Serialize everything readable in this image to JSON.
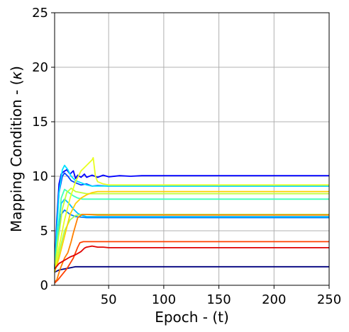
{
  "chart_data": {
    "type": "line",
    "xlabel": "Epoch - (t)",
    "ylabel_text": "Mapping Condition - (",
    "ylabel_symbol": "κ",
    "ylabel_close": ")",
    "xlim": [
      1,
      250
    ],
    "ylim": [
      0,
      25
    ],
    "xticks": [
      50,
      100,
      150,
      200,
      250
    ],
    "yticks": [
      0,
      5,
      10,
      15,
      20,
      25
    ],
    "grid": true,
    "series": [
      {
        "color": "#00007f",
        "points": [
          [
            1,
            1.2
          ],
          [
            5,
            1.4
          ],
          [
            10,
            1.5
          ],
          [
            15,
            1.6
          ],
          [
            20,
            1.7
          ],
          [
            30,
            1.7
          ],
          [
            250,
            1.7
          ]
        ]
      },
      {
        "color": "#0000ff",
        "points": [
          [
            1,
            1.5
          ],
          [
            3,
            6.0
          ],
          [
            5,
            9.3
          ],
          [
            7,
            10.2
          ],
          [
            9,
            10.4
          ],
          [
            12,
            10.6
          ],
          [
            15,
            10.2
          ],
          [
            18,
            10.5
          ],
          [
            20,
            9.8
          ],
          [
            22,
            10.1
          ],
          [
            25,
            9.9
          ],
          [
            28,
            10.2
          ],
          [
            30,
            9.9
          ],
          [
            35,
            10.1
          ],
          [
            40,
            9.9
          ],
          [
            45,
            10.1
          ],
          [
            50,
            9.95
          ],
          [
            60,
            10.05
          ],
          [
            70,
            10.0
          ],
          [
            80,
            10.05
          ],
          [
            250,
            10.05
          ]
        ]
      },
      {
        "color": "#0040ff",
        "points": [
          [
            1,
            1.5
          ],
          [
            3,
            5.5
          ],
          [
            5,
            8.5
          ],
          [
            8,
            10.0
          ],
          [
            10,
            10.3
          ],
          [
            13,
            10.0
          ],
          [
            16,
            9.6
          ],
          [
            20,
            9.4
          ],
          [
            25,
            9.2
          ],
          [
            30,
            9.3
          ],
          [
            35,
            9.1
          ],
          [
            40,
            9.15
          ],
          [
            50,
            9.1
          ],
          [
            250,
            9.1
          ]
        ]
      },
      {
        "color": "#0080ff",
        "points": [
          [
            1,
            1.5
          ],
          [
            4,
            4.5
          ],
          [
            7,
            6.5
          ],
          [
            10,
            6.9
          ],
          [
            15,
            6.5
          ],
          [
            20,
            6.3
          ],
          [
            30,
            6.2
          ],
          [
            50,
            6.2
          ],
          [
            250,
            6.2
          ]
        ]
      },
      {
        "color": "#00c0ff",
        "points": [
          [
            1,
            1.5
          ],
          [
            4,
            5.0
          ],
          [
            7,
            7.5
          ],
          [
            10,
            7.9
          ],
          [
            14,
            7.5
          ],
          [
            18,
            7.0
          ],
          [
            22,
            6.6
          ],
          [
            26,
            6.4
          ],
          [
            30,
            6.3
          ],
          [
            40,
            6.3
          ],
          [
            250,
            6.3
          ]
        ]
      },
      {
        "color": "#00e0ff",
        "points": [
          [
            1,
            1.5
          ],
          [
            3,
            5.0
          ],
          [
            5,
            8.5
          ],
          [
            8,
            10.6
          ],
          [
            10,
            11.0
          ],
          [
            13,
            10.6
          ],
          [
            16,
            10.0
          ],
          [
            20,
            9.6
          ],
          [
            25,
            9.4
          ],
          [
            30,
            9.2
          ],
          [
            35,
            9.1
          ],
          [
            40,
            9.1
          ],
          [
            250,
            9.1
          ]
        ]
      },
      {
        "color": "#40ffb8",
        "points": [
          [
            1,
            1.5
          ],
          [
            4,
            5.0
          ],
          [
            7,
            8.0
          ],
          [
            10,
            8.8
          ],
          [
            14,
            8.5
          ],
          [
            18,
            8.2
          ],
          [
            22,
            8.0
          ],
          [
            26,
            7.9
          ],
          [
            30,
            7.9
          ],
          [
            250,
            7.9
          ]
        ]
      },
      {
        "color": "#a0ff58",
        "points": [
          [
            1,
            1.2
          ],
          [
            5,
            3.0
          ],
          [
            10,
            5.0
          ],
          [
            15,
            6.0
          ],
          [
            20,
            6.4
          ],
          [
            25,
            6.5
          ],
          [
            30,
            6.5
          ],
          [
            250,
            6.5
          ]
        ]
      },
      {
        "color": "#c0ff38",
        "points": [
          [
            1,
            1.2
          ],
          [
            4,
            4.0
          ],
          [
            8,
            7.0
          ],
          [
            12,
            8.5
          ],
          [
            16,
            8.9
          ],
          [
            20,
            8.6
          ],
          [
            25,
            8.5
          ],
          [
            30,
            8.4
          ],
          [
            40,
            8.4
          ],
          [
            250,
            8.4
          ]
        ]
      },
      {
        "color": "#e8ff20",
        "points": [
          [
            1,
            1.2
          ],
          [
            5,
            3.5
          ],
          [
            10,
            6.0
          ],
          [
            15,
            8.0
          ],
          [
            20,
            9.5
          ],
          [
            25,
            10.5
          ],
          [
            30,
            11.0
          ],
          [
            35,
            11.5
          ],
          [
            36,
            11.7
          ],
          [
            38,
            10.0
          ],
          [
            40,
            9.5
          ],
          [
            45,
            9.3
          ],
          [
            50,
            9.2
          ],
          [
            60,
            9.2
          ],
          [
            250,
            9.2
          ]
        ]
      },
      {
        "color": "#ffd000",
        "points": [
          [
            1,
            1.2
          ],
          [
            5,
            2.5
          ],
          [
            10,
            4.5
          ],
          [
            15,
            6.5
          ],
          [
            20,
            7.5
          ],
          [
            25,
            8.0
          ],
          [
            30,
            8.3
          ],
          [
            35,
            8.5
          ],
          [
            40,
            8.6
          ],
          [
            50,
            8.6
          ],
          [
            250,
            8.6
          ]
        ]
      },
      {
        "color": "#ff8000",
        "points": [
          [
            1,
            0.3
          ],
          [
            3,
            0.5
          ],
          [
            6,
            1.5
          ],
          [
            10,
            2.5
          ],
          [
            13,
            3.0
          ],
          [
            16,
            4.0
          ],
          [
            18,
            4.8
          ],
          [
            20,
            5.5
          ],
          [
            22,
            6.2
          ],
          [
            26,
            6.5
          ],
          [
            30,
            6.5
          ],
          [
            40,
            6.45
          ],
          [
            250,
            6.45
          ]
        ]
      },
      {
        "color": "#ff4000",
        "points": [
          [
            1,
            0.2
          ],
          [
            4,
            0.5
          ],
          [
            8,
            1.0
          ],
          [
            12,
            1.5
          ],
          [
            15,
            2.0
          ],
          [
            18,
            2.5
          ],
          [
            20,
            3.0
          ],
          [
            22,
            3.5
          ],
          [
            24,
            3.9
          ],
          [
            27,
            4.0
          ],
          [
            30,
            4.0
          ],
          [
            40,
            4.0
          ],
          [
            250,
            4.0
          ]
        ]
      },
      {
        "color": "#e00000",
        "points": [
          [
            1,
            1.5
          ],
          [
            5,
            2.0
          ],
          [
            10,
            2.3
          ],
          [
            15,
            2.6
          ],
          [
            20,
            2.8
          ],
          [
            25,
            3.1
          ],
          [
            28,
            3.4
          ],
          [
            30,
            3.5
          ],
          [
            33,
            3.55
          ],
          [
            35,
            3.6
          ],
          [
            40,
            3.5
          ],
          [
            45,
            3.5
          ],
          [
            50,
            3.45
          ],
          [
            60,
            3.45
          ],
          [
            250,
            3.45
          ]
        ]
      }
    ]
  }
}
